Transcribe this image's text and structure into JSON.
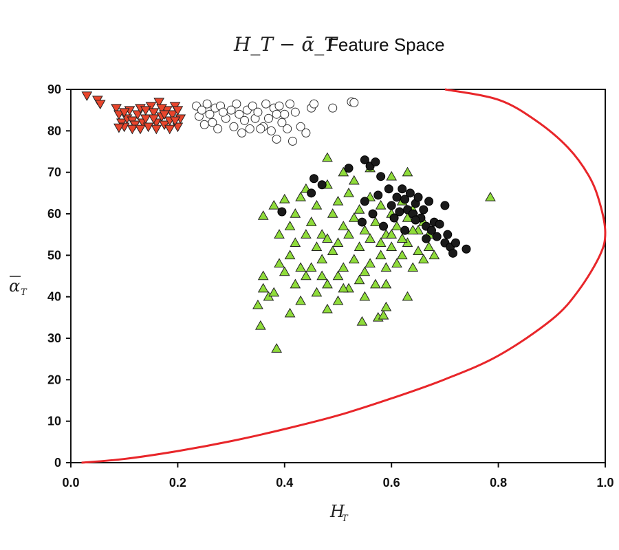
{
  "chart_data": {
    "type": "scatter",
    "title_math": "H_T − ᾱ_T",
    "title": "Feature Space",
    "xlabel": "H",
    "xlabel_sub": "T",
    "ylabel": "α",
    "ylabel_sub": "T",
    "xlim": [
      0,
      1
    ],
    "ylim": [
      0,
      90
    ],
    "xticks": [
      "0.0",
      "0.2",
      "0.4",
      "0.6",
      "0.8",
      "1.0"
    ],
    "yticks": [
      "0",
      "10",
      "20",
      "30",
      "40",
      "50",
      "60",
      "70",
      "80",
      "90"
    ],
    "grid": false,
    "legend": "none",
    "colors": {
      "red_triangles": "#e8452c",
      "open_circles": "#ffffff",
      "green_triangles": "#8fdc3a",
      "black_circles": "#1a1a1a",
      "boundary": "#e8262a"
    },
    "series": [
      {
        "marker": "triangle-down",
        "color": "#e8452c",
        "points": [
          [
            0.03,
            88.5
          ],
          [
            0.05,
            87.5
          ],
          [
            0.055,
            86.5
          ],
          [
            0.085,
            85.5
          ],
          [
            0.09,
            84
          ],
          [
            0.095,
            82
          ],
          [
            0.1,
            81
          ],
          [
            0.105,
            83
          ],
          [
            0.11,
            85
          ],
          [
            0.115,
            82.5
          ],
          [
            0.12,
            81.5
          ],
          [
            0.125,
            84
          ],
          [
            0.13,
            85.5
          ],
          [
            0.135,
            82
          ],
          [
            0.14,
            83
          ],
          [
            0.145,
            81
          ],
          [
            0.15,
            86
          ],
          [
            0.155,
            84.5
          ],
          [
            0.16,
            82
          ],
          [
            0.165,
            87
          ],
          [
            0.17,
            83.5
          ],
          [
            0.175,
            81.5
          ],
          [
            0.18,
            85
          ],
          [
            0.185,
            82.5
          ],
          [
            0.19,
            84
          ],
          [
            0.195,
            86
          ],
          [
            0.2,
            81
          ],
          [
            0.205,
            83
          ],
          [
            0.1,
            84.5
          ],
          [
            0.115,
            80.5
          ],
          [
            0.14,
            85
          ],
          [
            0.16,
            80.5
          ],
          [
            0.17,
            85.5
          ],
          [
            0.185,
            80.5
          ],
          [
            0.2,
            85
          ],
          [
            0.13,
            80.5
          ],
          [
            0.155,
            83
          ],
          [
            0.175,
            84
          ],
          [
            0.195,
            82.5
          ],
          [
            0.09,
            80.8
          ]
        ]
      },
      {
        "marker": "circle-open",
        "color": "#ffffff",
        "points": [
          [
            0.235,
            86
          ],
          [
            0.24,
            83.5
          ],
          [
            0.245,
            85
          ],
          [
            0.25,
            81.5
          ],
          [
            0.255,
            86.5
          ],
          [
            0.26,
            84
          ],
          [
            0.265,
            82
          ],
          [
            0.27,
            85.5
          ],
          [
            0.275,
            80.5
          ],
          [
            0.28,
            86
          ],
          [
            0.29,
            83
          ],
          [
            0.3,
            85
          ],
          [
            0.305,
            81
          ],
          [
            0.31,
            86.5
          ],
          [
            0.315,
            84
          ],
          [
            0.32,
            79.5
          ],
          [
            0.325,
            82.5
          ],
          [
            0.33,
            85
          ],
          [
            0.335,
            80.5
          ],
          [
            0.34,
            86
          ],
          [
            0.345,
            83
          ],
          [
            0.35,
            84.5
          ],
          [
            0.36,
            81
          ],
          [
            0.365,
            86.5
          ],
          [
            0.37,
            83
          ],
          [
            0.375,
            80
          ],
          [
            0.38,
            85.5
          ],
          [
            0.385,
            78
          ],
          [
            0.39,
            86
          ],
          [
            0.395,
            82
          ],
          [
            0.4,
            84
          ],
          [
            0.405,
            80.5
          ],
          [
            0.41,
            86.5
          ],
          [
            0.415,
            77.5
          ],
          [
            0.42,
            84.5
          ],
          [
            0.43,
            81
          ],
          [
            0.44,
            79.5
          ],
          [
            0.45,
            85.5
          ],
          [
            0.455,
            86.5
          ],
          [
            0.49,
            85.5
          ],
          [
            0.525,
            87
          ],
          [
            0.53,
            86.8
          ],
          [
            0.285,
            84.5
          ],
          [
            0.355,
            80.5
          ],
          [
            0.385,
            84
          ]
        ]
      },
      {
        "marker": "triangle-up",
        "color": "#8fdc3a",
        "points": [
          [
            0.385,
            27.5
          ],
          [
            0.355,
            33
          ],
          [
            0.35,
            38
          ],
          [
            0.48,
            37
          ],
          [
            0.5,
            39
          ],
          [
            0.545,
            34
          ],
          [
            0.575,
            35
          ],
          [
            0.585,
            35.5
          ],
          [
            0.59,
            37.5
          ],
          [
            0.63,
            40
          ],
          [
            0.36,
            42
          ],
          [
            0.36,
            45
          ],
          [
            0.37,
            40
          ],
          [
            0.38,
            41
          ],
          [
            0.39,
            48
          ],
          [
            0.4,
            46
          ],
          [
            0.41,
            50
          ],
          [
            0.42,
            43
          ],
          [
            0.43,
            39
          ],
          [
            0.44,
            45
          ],
          [
            0.45,
            47
          ],
          [
            0.46,
            41
          ],
          [
            0.47,
            49
          ],
          [
            0.48,
            43
          ],
          [
            0.49,
            51
          ],
          [
            0.5,
            45
          ],
          [
            0.51,
            47
          ],
          [
            0.52,
            42
          ],
          [
            0.53,
            49
          ],
          [
            0.54,
            44
          ],
          [
            0.55,
            46
          ],
          [
            0.56,
            48
          ],
          [
            0.57,
            43
          ],
          [
            0.58,
            50
          ],
          [
            0.59,
            47
          ],
          [
            0.6,
            52
          ],
          [
            0.61,
            48
          ],
          [
            0.62,
            50
          ],
          [
            0.63,
            53
          ],
          [
            0.64,
            47
          ],
          [
            0.65,
            51
          ],
          [
            0.66,
            49
          ],
          [
            0.67,
            52
          ],
          [
            0.68,
            50
          ],
          [
            0.36,
            59.5
          ],
          [
            0.38,
            62
          ],
          [
            0.4,
            63.5
          ],
          [
            0.41,
            57
          ],
          [
            0.42,
            60
          ],
          [
            0.43,
            64
          ],
          [
            0.44,
            66
          ],
          [
            0.45,
            58
          ],
          [
            0.46,
            62
          ],
          [
            0.47,
            55
          ],
          [
            0.48,
            67
          ],
          [
            0.49,
            60
          ],
          [
            0.5,
            63
          ],
          [
            0.51,
            57
          ],
          [
            0.52,
            65
          ],
          [
            0.53,
            59
          ],
          [
            0.54,
            61
          ],
          [
            0.55,
            56
          ],
          [
            0.56,
            64
          ],
          [
            0.57,
            58
          ],
          [
            0.58,
            62
          ],
          [
            0.59,
            55
          ],
          [
            0.6,
            60
          ],
          [
            0.61,
            57
          ],
          [
            0.62,
            63
          ],
          [
            0.63,
            59
          ],
          [
            0.64,
            61
          ],
          [
            0.65,
            56
          ],
          [
            0.66,
            58
          ],
          [
            0.67,
            55
          ],
          [
            0.48,
            73.5
          ],
          [
            0.51,
            70
          ],
          [
            0.53,
            68
          ],
          [
            0.56,
            71
          ],
          [
            0.6,
            69
          ],
          [
            0.63,
            70
          ],
          [
            0.785,
            64
          ],
          [
            0.42,
            53
          ],
          [
            0.44,
            55
          ],
          [
            0.46,
            52
          ],
          [
            0.48,
            54
          ],
          [
            0.5,
            53
          ],
          [
            0.52,
            55
          ],
          [
            0.54,
            52
          ],
          [
            0.56,
            54
          ],
          [
            0.58,
            53
          ],
          [
            0.6,
            55
          ],
          [
            0.62,
            54
          ],
          [
            0.64,
            56
          ],
          [
            0.43,
            47
          ],
          [
            0.47,
            45
          ],
          [
            0.51,
            42
          ],
          [
            0.55,
            40
          ],
          [
            0.59,
            43
          ],
          [
            0.39,
            55
          ],
          [
            0.41,
            36
          ]
        ]
      },
      {
        "marker": "circle-filled",
        "color": "#1a1a1a",
        "points": [
          [
            0.395,
            60.5
          ],
          [
            0.45,
            65
          ],
          [
            0.455,
            68.5
          ],
          [
            0.47,
            67
          ],
          [
            0.52,
            71
          ],
          [
            0.55,
            73
          ],
          [
            0.56,
            71.5
          ],
          [
            0.57,
            72.5
          ],
          [
            0.58,
            69
          ],
          [
            0.595,
            66
          ],
          [
            0.6,
            62
          ],
          [
            0.61,
            64
          ],
          [
            0.62,
            66
          ],
          [
            0.625,
            63.5
          ],
          [
            0.63,
            61
          ],
          [
            0.635,
            65
          ],
          [
            0.64,
            60
          ],
          [
            0.645,
            62.5
          ],
          [
            0.65,
            64
          ],
          [
            0.655,
            59
          ],
          [
            0.66,
            61
          ],
          [
            0.665,
            57
          ],
          [
            0.67,
            63
          ],
          [
            0.675,
            56
          ],
          [
            0.68,
            58
          ],
          [
            0.685,
            54.5
          ],
          [
            0.69,
            57.5
          ],
          [
            0.7,
            53
          ],
          [
            0.705,
            55
          ],
          [
            0.71,
            52
          ],
          [
            0.715,
            50.5
          ],
          [
            0.72,
            53
          ],
          [
            0.74,
            51.5
          ],
          [
            0.545,
            58
          ],
          [
            0.565,
            60
          ],
          [
            0.585,
            57
          ],
          [
            0.605,
            59
          ],
          [
            0.625,
            56
          ],
          [
            0.645,
            58.5
          ],
          [
            0.665,
            54
          ],
          [
            0.55,
            63
          ],
          [
            0.575,
            64.5
          ],
          [
            0.615,
            60.5
          ],
          [
            0.7,
            62
          ]
        ]
      }
    ],
    "boundary_curve": [
      [
        0.02,
        0
      ],
      [
        0.1,
        0.9
      ],
      [
        0.2,
        2.8
      ],
      [
        0.3,
        5.2
      ],
      [
        0.4,
        8.1
      ],
      [
        0.5,
        11.4
      ],
      [
        0.6,
        15.5
      ],
      [
        0.7,
        20.1
      ],
      [
        0.8,
        25.8
      ],
      [
        0.9,
        34.5
      ],
      [
        0.95,
        41.5
      ],
      [
        0.99,
        50
      ],
      [
        1.0,
        55.5
      ],
      [
        0.99,
        62.5
      ],
      [
        0.97,
        69
      ],
      [
        0.93,
        76
      ],
      [
        0.87,
        82.5
      ],
      [
        0.8,
        87.5
      ],
      [
        0.7,
        90
      ]
    ]
  }
}
